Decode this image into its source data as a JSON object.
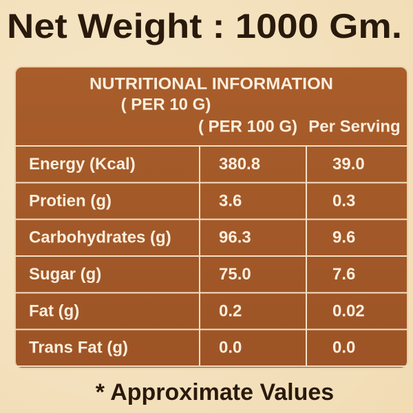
{
  "header": {
    "title": "Net Weight : 1000 Gm."
  },
  "table": {
    "title": "NUTRITIONAL INFORMATION",
    "subtitle": "( PER 10 G)",
    "columns": [
      "( PER 100 G)",
      "Per Serving"
    ],
    "rows": [
      [
        "Energy (Kcal)",
        "380.8",
        "39.0"
      ],
      [
        "Protien (g)",
        "3.6",
        "0.3"
      ],
      [
        "Carbohydrates (g)",
        "96.3",
        "9.6"
      ],
      [
        "Sugar (g)",
        "75.0",
        "7.6"
      ],
      [
        "Fat (g)",
        "0.2",
        "0.02"
      ],
      [
        "Trans Fat (g)",
        "0.0",
        "0.0"
      ]
    ]
  },
  "footer": {
    "note": "* Approximate Values"
  }
}
